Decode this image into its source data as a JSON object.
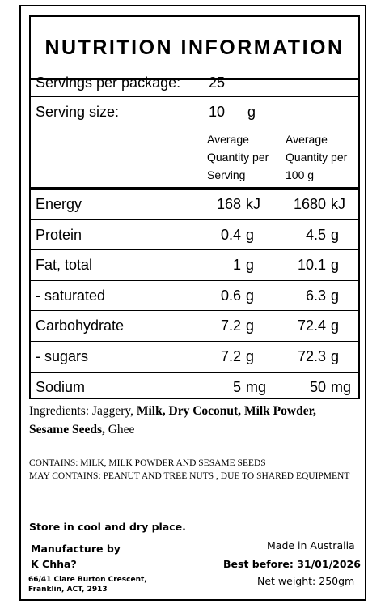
{
  "panel": {
    "title": "NUTRITION INFORMATION",
    "servings_label": "Servings per package:",
    "servings_value": "25",
    "serving_size_label": "Serving size:",
    "serving_size_value": "10",
    "serving_size_unit": "g",
    "col1_header": [
      "Average",
      "Quantity per",
      "Serving"
    ],
    "col2_header": [
      "Average",
      "Quantity per",
      "100 g"
    ],
    "rows": [
      {
        "label": "Energy",
        "v1": "168",
        "u1": "kJ",
        "v2": "1680",
        "u2": "kJ"
      },
      {
        "label": "Protein",
        "v1": "0.4",
        "u1": "g",
        "v2": "4.5",
        "u2": "g"
      },
      {
        "label": "Fat, total",
        "v1": "1",
        "u1": "g",
        "v2": "10.1",
        "u2": "g"
      },
      {
        "label": "- saturated",
        "v1": "0.6",
        "u1": "g",
        "v2": "6.3",
        "u2": "g"
      },
      {
        "label": "Carbohydrate",
        "v1": "7.2",
        "u1": "g",
        "v2": "72.4",
        "u2": "g"
      },
      {
        "label": "- sugars",
        "v1": "7.2",
        "u1": "g",
        "v2": "72.3",
        "u2": "g"
      },
      {
        "label": "Sodium",
        "v1": "5",
        "u1": "mg",
        "v2": "50",
        "u2": "mg"
      }
    ]
  },
  "ingredients": {
    "label": "Ingredients:",
    "jaggery": "Jaggery,",
    "milk": "Milk,",
    "dry_coconut": "Dry Coconut,",
    "milk_powder": "Milk Powder,",
    "sesame": "Sesame Seeds,",
    "ghee": "Ghee"
  },
  "allergens": {
    "contains": "CONTAINS: MILK, MILK POWDER AND SESAME SEEDS",
    "may_contain": "MAY CONTAINS: PEANUT AND TREE NUTS , DUE TO SHARED EQUIPMENT"
  },
  "footer": {
    "storage": "Store in cool and dry place.",
    "manufacture_label": "Manufacture by",
    "manufacturer": "K Chha?",
    "address_line1": "66/41 Clare Burton Crescent,",
    "address_line2": "Franklin, ACT, 2913",
    "made_in": "Made in Australia",
    "best_before": "Best before: 31/01/2026",
    "net_weight": "Net weight: 250gm"
  }
}
